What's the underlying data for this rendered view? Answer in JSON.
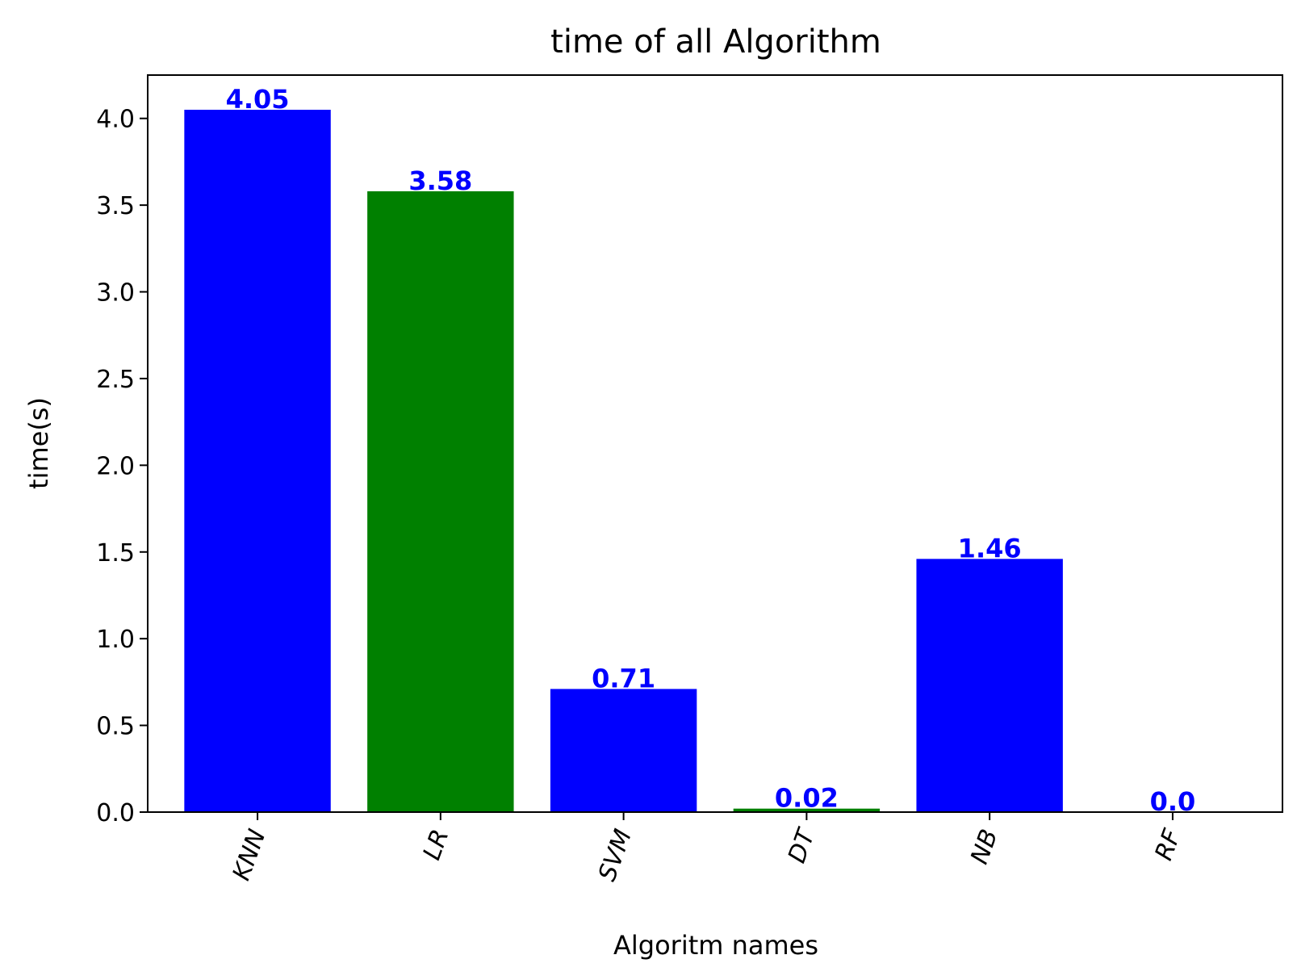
{
  "chart_data": {
    "type": "bar",
    "title": "time of all Algorithm",
    "xlabel": "Algoritm names",
    "ylabel": "time(s)",
    "categories": [
      "KNN",
      "LR",
      "SVM",
      "DT",
      "NB",
      "RF"
    ],
    "values": [
      4.05,
      3.58,
      0.71,
      0.02,
      1.46,
      0.0
    ],
    "data_labels": [
      "4.05",
      "3.58",
      "0.71",
      "0.02",
      "1.46",
      "0.0"
    ],
    "bar_colors": [
      "#0000ff",
      "#008000",
      "#0000ff",
      "#008000",
      "#0000ff",
      "#008000"
    ],
    "label_color": "#0000ff",
    "ylim": [
      0,
      4.25
    ],
    "yticks": [
      0.0,
      0.5,
      1.0,
      1.5,
      2.0,
      2.5,
      3.0,
      3.5,
      4.0
    ],
    "ytick_labels": [
      "0.0",
      "0.5",
      "1.0",
      "1.5",
      "2.0",
      "2.5",
      "3.0",
      "3.5",
      "4.0"
    ],
    "xtick_rotation": 70,
    "grid": false,
    "legend": "none"
  }
}
